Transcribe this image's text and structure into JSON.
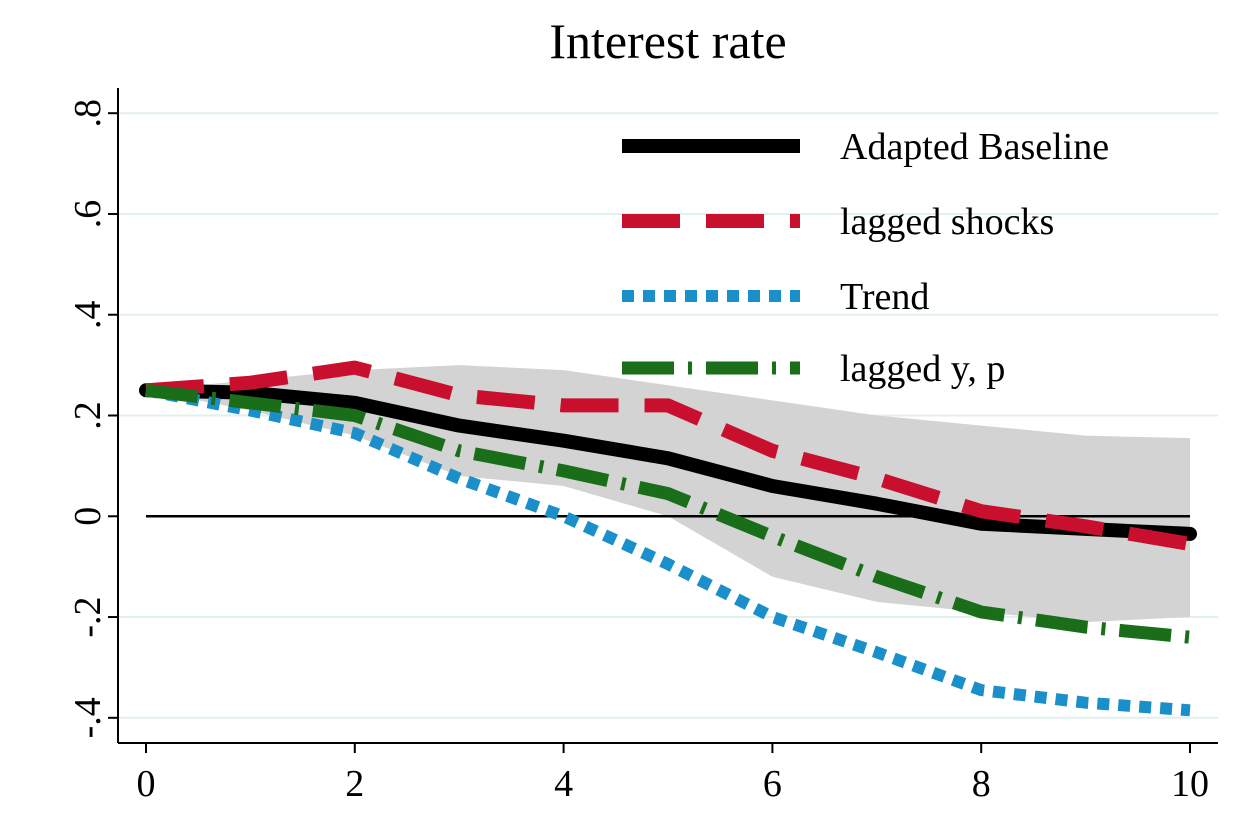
{
  "chart_data": {
    "type": "line",
    "title": "Interest rate",
    "xlabel": "",
    "ylabel": "",
    "xlim": [
      0,
      10
    ],
    "ylim": [
      -0.45,
      0.85
    ],
    "x_ticks": [
      0,
      2,
      4,
      6,
      8,
      10
    ],
    "x_tick_labels": [
      "0",
      "2",
      "4",
      "6",
      "8",
      "10"
    ],
    "y_ticks": [
      -0.4,
      -0.2,
      0,
      0.2,
      0.4,
      0.6,
      0.8
    ],
    "y_tick_labels": [
      "-.4",
      "-.2",
      "0",
      ".2",
      ".4",
      ".6",
      ".8"
    ],
    "grid": true,
    "legend_position": "top-right",
    "zero_line": true,
    "x": [
      0,
      1,
      2,
      3,
      4,
      5,
      6,
      7,
      8,
      9,
      10
    ],
    "confidence_band": {
      "color": "#d3d3d3",
      "upper": [
        0.25,
        0.27,
        0.29,
        0.3,
        0.29,
        0.26,
        0.23,
        0.2,
        0.18,
        0.16,
        0.155
      ],
      "lower": [
        0.25,
        0.21,
        0.16,
        0.08,
        0.06,
        0.0,
        -0.12,
        -0.17,
        -0.19,
        -0.21,
        -0.2
      ]
    },
    "series": [
      {
        "name": "Adapted Baseline",
        "color": "#000000",
        "style": "solid",
        "values": [
          0.25,
          0.245,
          0.225,
          0.18,
          0.15,
          0.115,
          0.06,
          0.025,
          -0.015,
          -0.025,
          -0.035
        ]
      },
      {
        "name": "lagged shocks",
        "color": "#c8102e",
        "style": "dash",
        "values": [
          0.25,
          0.265,
          0.295,
          0.24,
          0.22,
          0.22,
          0.13,
          0.075,
          0.01,
          -0.02,
          -0.055
        ]
      },
      {
        "name": "Trend",
        "color": "#1b8fc9",
        "style": "dot",
        "values": [
          0.25,
          0.21,
          0.165,
          0.075,
          0.0,
          -0.095,
          -0.2,
          -0.27,
          -0.345,
          -0.37,
          -0.385
        ]
      },
      {
        "name": "lagged y, p",
        "color": "#1a6e1a",
        "style": "dashdot",
        "values": [
          0.25,
          0.225,
          0.2,
          0.13,
          0.09,
          0.045,
          -0.04,
          -0.12,
          -0.19,
          -0.22,
          -0.24
        ]
      }
    ]
  }
}
